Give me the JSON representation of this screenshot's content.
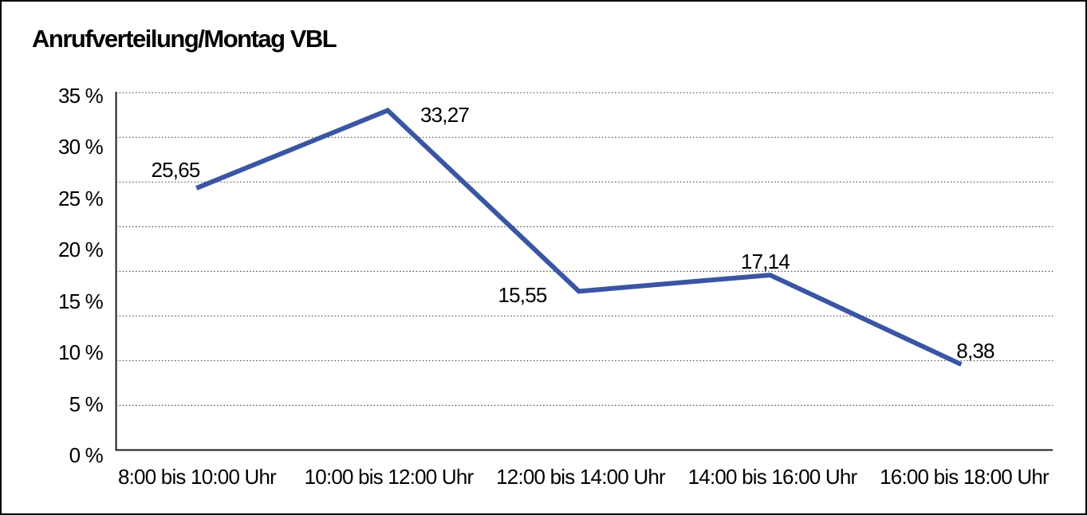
{
  "title": "Anrufverteilung/Montag VBL",
  "chart_data": {
    "type": "line",
    "title": "Anrufverteilung/Montag VBL",
    "categories": [
      "8:00 bis 10:00 Uhr",
      "10:00 bis 12:00 Uhr",
      "12:00 bis 14:00 Uhr",
      "14:00 bis 16:00 Uhr",
      "16:00 bis 18:00 Uhr"
    ],
    "values": [
      25.65,
      33.27,
      15.55,
      17.14,
      8.38
    ],
    "data_labels": [
      "25,65",
      "33,27",
      "15,55",
      "17,14",
      "8,38"
    ],
    "xlabel": "",
    "ylabel": "",
    "ylim": [
      0,
      35
    ],
    "ytick_step": 5,
    "yticks": [
      "0 %",
      "5 %",
      "10 %",
      "15 %",
      "20 %",
      "25 %",
      "30 %",
      "35 %"
    ],
    "grid": "horizontal-dotted",
    "gridline_intervals": 8,
    "legend_position": "none",
    "colors": {
      "line": "#3A56A2",
      "axis": "#1c1c1c",
      "gridline": "#4a4a4a",
      "text": "#000000"
    }
  }
}
